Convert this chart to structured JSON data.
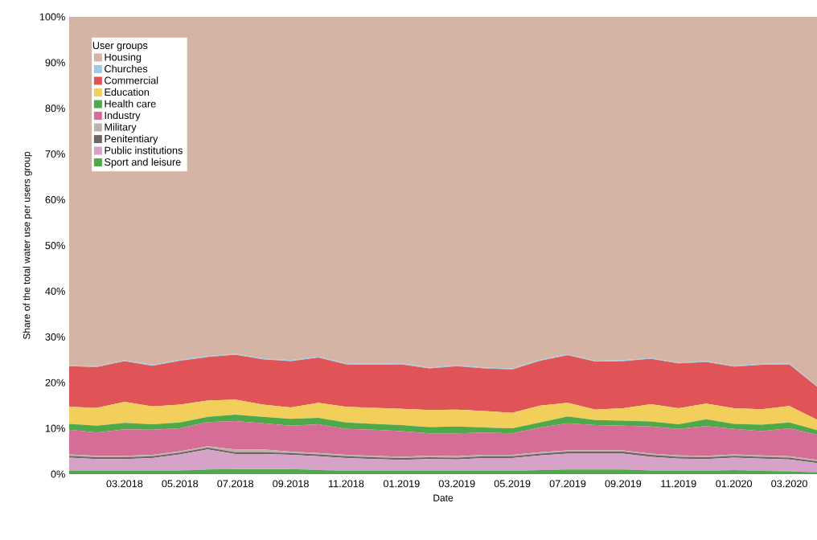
{
  "chart_data": {
    "type": "area",
    "stacked": true,
    "xlabel": "Date",
    "ylabel": "Share of the total water use per users group",
    "legend_title": "User groups",
    "legend": "top left",
    "x": [
      "2018-01",
      "2018-02",
      "2018-03",
      "2018-04",
      "2018-05",
      "2018-06",
      "2018-07",
      "2018-08",
      "2018-09",
      "2018-10",
      "2018-11",
      "2018-12",
      "2019-01",
      "2019-02",
      "2019-03",
      "2019-04",
      "2019-05",
      "2019-06",
      "2019-07",
      "2019-08",
      "2019-09",
      "2019-10",
      "2019-11",
      "2019-12",
      "2020-01",
      "2020-02",
      "2020-03",
      "2020-04"
    ],
    "xlim": [
      "2018-01",
      "2020-04"
    ],
    "ylim": [
      0,
      100
    ],
    "xticks": [
      {
        "value": "2018-03",
        "label": "03.2018"
      },
      {
        "value": "2018-05",
        "label": "05.2018"
      },
      {
        "value": "2018-07",
        "label": "07.2018"
      },
      {
        "value": "2018-09",
        "label": "09.2018"
      },
      {
        "value": "2018-11",
        "label": "11.2018"
      },
      {
        "value": "2019-01",
        "label": "01.2019"
      },
      {
        "value": "2019-03",
        "label": "03.2019"
      },
      {
        "value": "2019-05",
        "label": "05.2019"
      },
      {
        "value": "2019-07",
        "label": "07.2019"
      },
      {
        "value": "2019-09",
        "label": "09.2019"
      },
      {
        "value": "2019-11",
        "label": "11.2019"
      },
      {
        "value": "2020-01",
        "label": "01.2020"
      },
      {
        "value": "2020-03",
        "label": "03.2020"
      }
    ],
    "yticks": [
      {
        "value": 0,
        "label": "0%"
      },
      {
        "value": 10,
        "label": "10%"
      },
      {
        "value": 20,
        "label": "20%"
      },
      {
        "value": 30,
        "label": "30%"
      },
      {
        "value": 40,
        "label": "40%"
      },
      {
        "value": 50,
        "label": "50%"
      },
      {
        "value": 60,
        "label": "60%"
      },
      {
        "value": 70,
        "label": "70%"
      },
      {
        "value": 80,
        "label": "80%"
      },
      {
        "value": 90,
        "label": "90%"
      },
      {
        "value": 100,
        "label": "100%"
      }
    ],
    "series": [
      {
        "name": "Sport and leisure",
        "color": "#4fa84a",
        "values": [
          0.7,
          0.7,
          0.7,
          0.7,
          0.8,
          1.0,
          1.1,
          1.1,
          1.1,
          0.9,
          0.7,
          0.7,
          0.7,
          0.7,
          0.7,
          0.7,
          0.7,
          0.9,
          1.0,
          1.0,
          1.0,
          0.8,
          0.7,
          0.7,
          0.9,
          0.7,
          0.6,
          0.4
        ]
      },
      {
        "name": "Public institutions",
        "color": "#d6a2c8",
        "values": [
          2.9,
          2.6,
          2.6,
          2.8,
          3.5,
          4.4,
          3.3,
          3.3,
          3.1,
          3.0,
          2.8,
          2.6,
          2.4,
          2.6,
          2.5,
          2.8,
          2.8,
          3.2,
          3.5,
          3.5,
          3.5,
          3.0,
          2.7,
          2.6,
          2.7,
          2.7,
          2.6,
          2.0
        ]
      },
      {
        "name": "Penitentiary",
        "color": "#6f6462",
        "values": [
          0.4,
          0.4,
          0.4,
          0.4,
          0.4,
          0.4,
          0.4,
          0.4,
          0.4,
          0.4,
          0.4,
          0.4,
          0.4,
          0.4,
          0.4,
          0.4,
          0.4,
          0.4,
          0.4,
          0.4,
          0.4,
          0.4,
          0.4,
          0.4,
          0.4,
          0.4,
          0.4,
          0.4
        ]
      },
      {
        "name": "Military",
        "color": "#bcb1ad",
        "values": [
          0.3,
          0.3,
          0.3,
          0.3,
          0.3,
          0.3,
          0.6,
          0.6,
          0.3,
          0.3,
          0.3,
          0.3,
          0.3,
          0.3,
          0.3,
          0.3,
          0.3,
          0.3,
          0.3,
          0.3,
          0.3,
          0.3,
          0.3,
          0.3,
          0.3,
          0.3,
          0.3,
          0.3
        ]
      },
      {
        "name": "Industry",
        "color": "#d56d96",
        "values": [
          5.4,
          5.1,
          5.8,
          5.5,
          5.0,
          5.3,
          6.2,
          5.7,
          5.7,
          6.3,
          5.7,
          5.7,
          5.6,
          4.9,
          5.0,
          4.9,
          4.7,
          5.4,
          5.9,
          5.5,
          5.4,
          5.9,
          5.8,
          6.5,
          5.6,
          5.3,
          6.1,
          5.5
        ]
      },
      {
        "name": "Health care",
        "color": "#4fa84a",
        "values": [
          1.3,
          1.5,
          1.4,
          1.2,
          1.3,
          1.1,
          1.4,
          1.4,
          1.5,
          1.4,
          1.4,
          1.3,
          1.3,
          1.4,
          1.5,
          1.1,
          1.1,
          1.1,
          1.5,
          1.1,
          1.1,
          1.1,
          1.0,
          1.5,
          1.1,
          1.4,
          1.3,
          1.0
        ]
      },
      {
        "name": "Education",
        "color": "#f2cf5b",
        "values": [
          3.7,
          3.9,
          4.6,
          3.9,
          3.9,
          3.6,
          3.3,
          2.7,
          2.5,
          3.3,
          3.4,
          3.5,
          3.6,
          3.7,
          3.7,
          3.6,
          3.4,
          3.7,
          3.0,
          2.3,
          2.7,
          3.8,
          3.5,
          3.4,
          3.4,
          3.4,
          3.6,
          2.3
        ]
      },
      {
        "name": "Commercial",
        "color": "#e05458",
        "values": [
          8.9,
          8.9,
          8.9,
          8.9,
          9.6,
          9.5,
          9.8,
          9.9,
          10.1,
          9.9,
          9.3,
          9.4,
          9.7,
          9.1,
          9.5,
          9.3,
          9.5,
          9.8,
          10.4,
          10.5,
          10.3,
          9.9,
          9.8,
          9.1,
          9.1,
          9.7,
          9.1,
          7.2
        ]
      },
      {
        "name": "Churches",
        "color": "#9ecae1",
        "values": [
          0.2,
          0.2,
          0.2,
          0.2,
          0.2,
          0.2,
          0.2,
          0.2,
          0.2,
          0.2,
          0.2,
          0.2,
          0.2,
          0.2,
          0.2,
          0.2,
          0.2,
          0.2,
          0.2,
          0.2,
          0.2,
          0.2,
          0.2,
          0.2,
          0.2,
          0.2,
          0.2,
          0.2
        ]
      },
      {
        "name": "Housing",
        "color": "#d5b3a5",
        "values": [
          76.2,
          76.4,
          75.1,
          76.1,
          75.0,
          74.2,
          73.7,
          74.7,
          75.1,
          74.3,
          75.8,
          75.9,
          75.8,
          76.7,
          76.2,
          76.7,
          76.9,
          75.0,
          73.8,
          75.2,
          75.1,
          74.6,
          75.6,
          75.3,
          76.3,
          75.9,
          75.8,
          80.7
        ]
      }
    ]
  }
}
